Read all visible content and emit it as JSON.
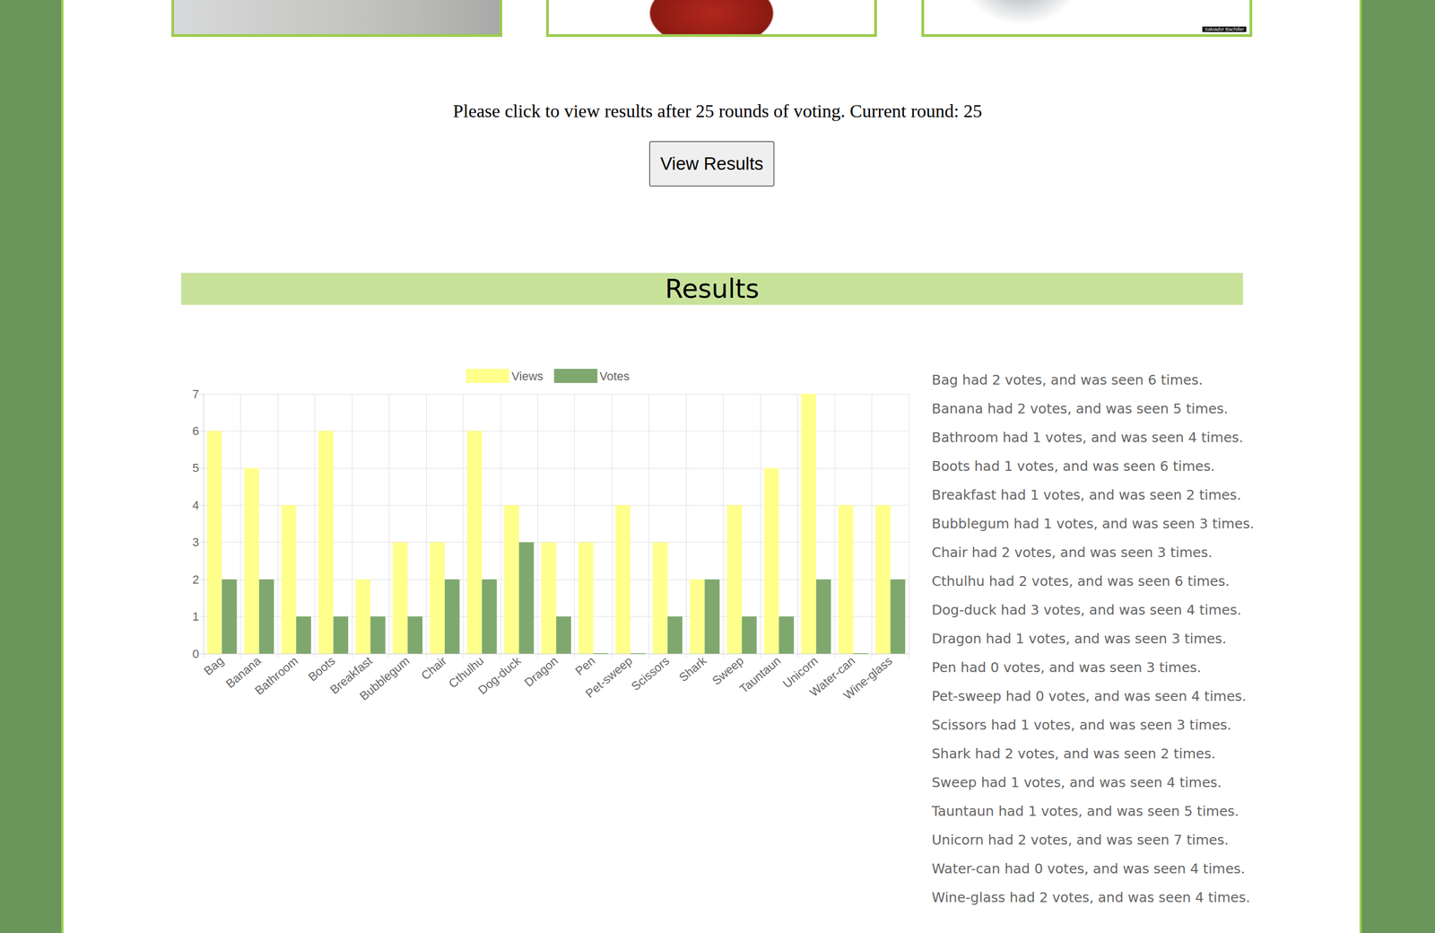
{
  "image_credit": "Salvador Bachiller",
  "prompt": "Please click to view results after 25 rounds of voting. Current round: 25",
  "button": "View Results",
  "heading": "Results",
  "chart_data": {
    "type": "bar",
    "categories": [
      "Bag",
      "Banana",
      "Bathroom",
      "Boots",
      "Breakfast",
      "Bubblegum",
      "Chair",
      "Cthulhu",
      "Dog-duck",
      "Dragon",
      "Pen",
      "Pet-sweep",
      "Scissors",
      "Shark",
      "Sweep",
      "Tauntaun",
      "Unicorn",
      "Water-can",
      "Wine-glass"
    ],
    "series": [
      {
        "name": "Views",
        "color": "#ffff8c",
        "values": [
          6,
          5,
          4,
          6,
          2,
          3,
          3,
          6,
          4,
          3,
          3,
          4,
          3,
          2,
          4,
          5,
          7,
          4,
          4
        ]
      },
      {
        "name": "Votes",
        "color": "#7fa86e",
        "values": [
          2,
          2,
          1,
          1,
          1,
          1,
          2,
          2,
          3,
          1,
          0,
          0,
          1,
          2,
          1,
          1,
          2,
          0,
          2
        ]
      }
    ],
    "ylim": [
      0,
      7
    ],
    "yticks": [
      0,
      1,
      2,
      3,
      4,
      5,
      6,
      7
    ],
    "grid": true,
    "legend": "top"
  },
  "results": [
    "Bag had 2 votes, and was seen 6 times.",
    "Banana had 2 votes, and was seen 5 times.",
    "Bathroom had 1 votes, and was seen 4 times.",
    "Boots had 1 votes, and was seen 6 times.",
    "Breakfast had 1 votes, and was seen 2 times.",
    "Bubblegum had 1 votes, and was seen 3 times.",
    "Chair had 2 votes, and was seen 3 times.",
    "Cthulhu had 2 votes, and was seen 6 times.",
    "Dog-duck had 3 votes, and was seen 4 times.",
    "Dragon had 1 votes, and was seen 3 times.",
    "Pen had 0 votes, and was seen 3 times.",
    "Pet-sweep had 0 votes, and was seen 4 times.",
    "Scissors had 1 votes, and was seen 3 times.",
    "Shark had 2 votes, and was seen 2 times.",
    "Sweep had 1 votes, and was seen 4 times.",
    "Tauntaun had 1 votes, and was seen 5 times.",
    "Unicorn had 2 votes, and was seen 7 times.",
    "Water-can had 0 votes, and was seen 4 times.",
    "Wine-glass had 2 votes, and was seen 4 times."
  ]
}
